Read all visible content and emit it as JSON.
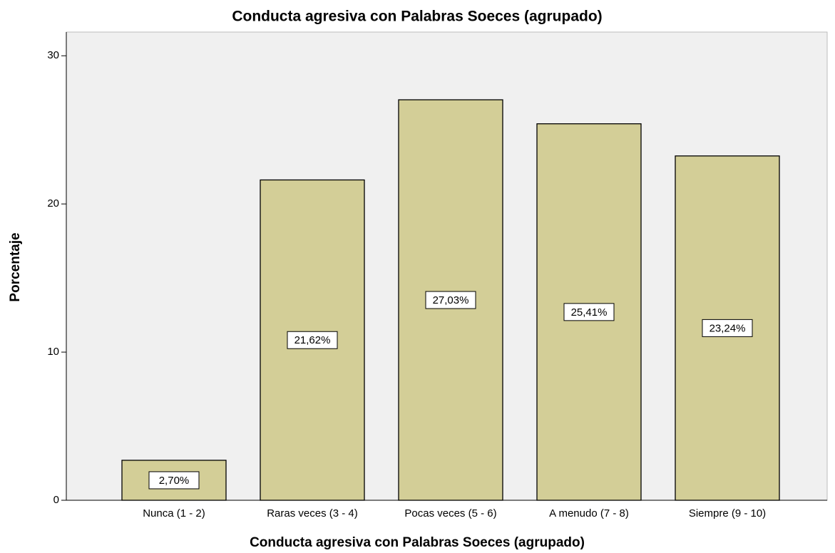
{
  "chart_data": {
    "type": "bar",
    "title": "Conducta agresiva con Palabras Soeces (agrupado)",
    "x_label": "Conducta agresiva con Palabras Soeces (agrupado)",
    "y_label": "Porcentaje",
    "categories": [
      "Nunca (1 - 2)",
      "Raras veces (3 - 4)",
      "Pocas veces (5 - 6)",
      "A menudo (7 - 8)",
      "Siempre (9 - 10)"
    ],
    "values": [
      2.7,
      21.62,
      27.03,
      25.41,
      23.24
    ],
    "value_labels": [
      "2,70%",
      "21,62%",
      "27,03%",
      "25,41%",
      "23,24%"
    ],
    "color": "#d3ce97",
    "ylim": [
      0,
      31.6
    ],
    "yticks": [
      0,
      10,
      20,
      30
    ],
    "grid": false
  }
}
